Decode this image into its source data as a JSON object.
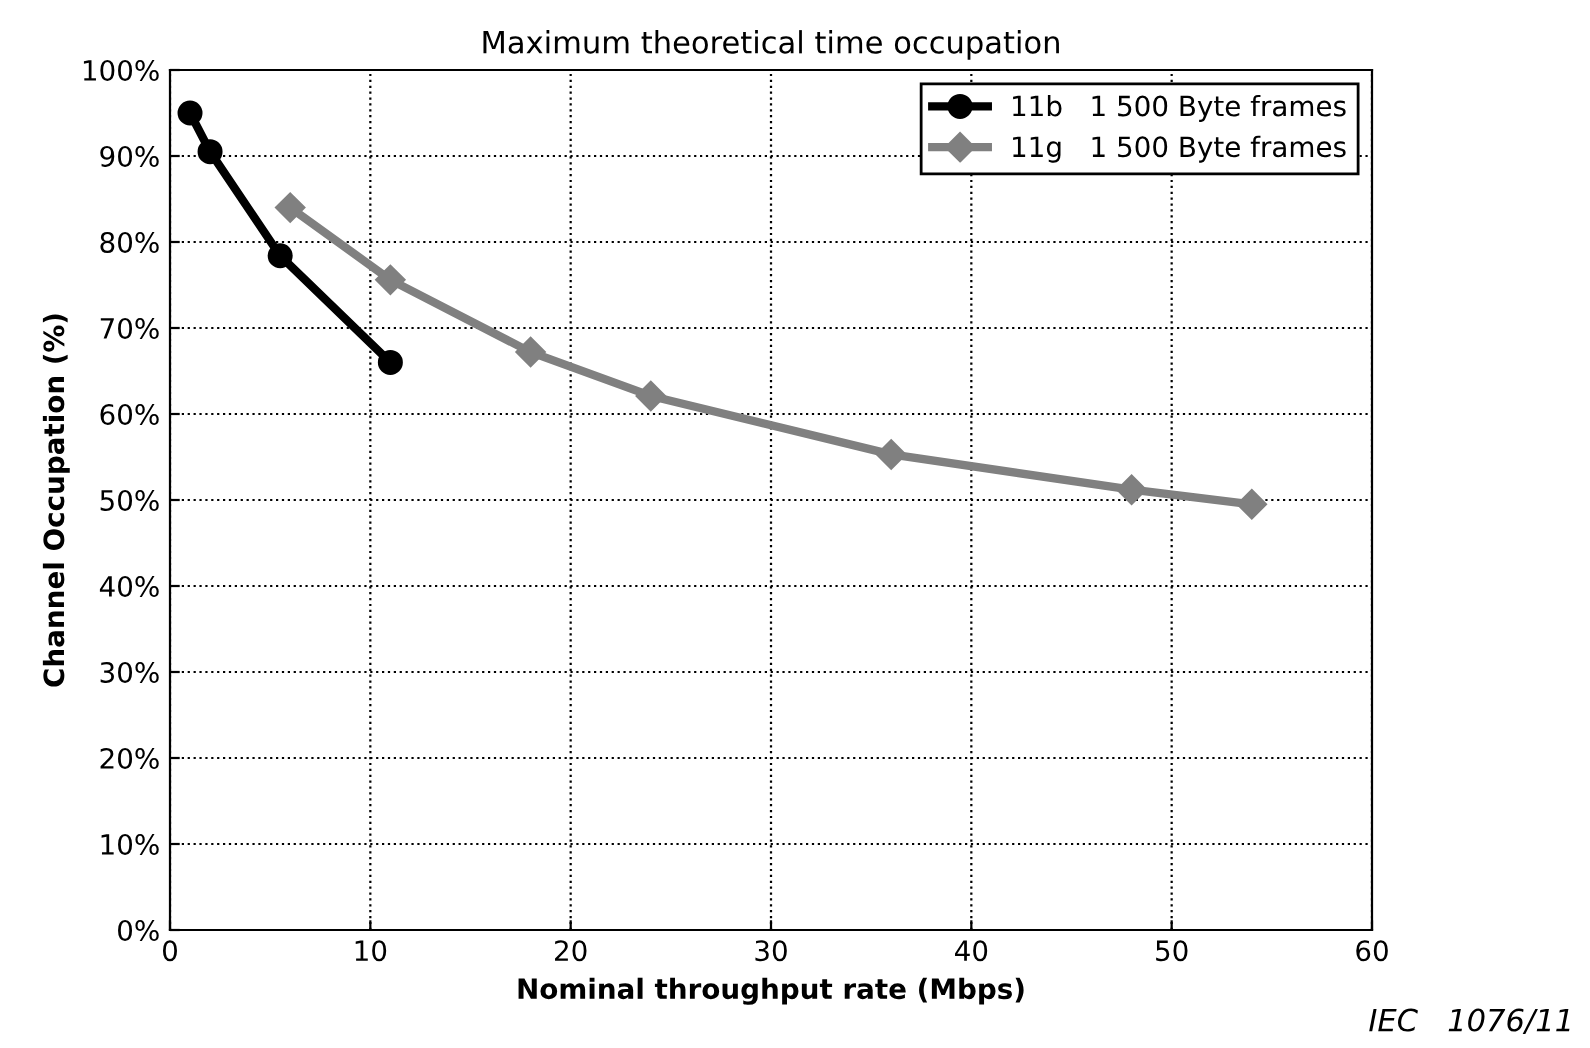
{
  "chart_data": {
    "type": "line",
    "title": "Maximum theoretical time occupation",
    "xlabel": "Nominal throughput rate (Mbps)",
    "ylabel": "Channel Occupation (%)",
    "series": [
      {
        "name": "11b   1 500 Byte frames",
        "color": "#000000",
        "marker": "circle",
        "x": [
          1,
          2,
          5.5,
          11
        ],
        "values": [
          95,
          90.5,
          78.4,
          66
        ]
      },
      {
        "name": "11g   1 500 Byte frames",
        "color": "#808080",
        "marker": "diamond",
        "x": [
          6,
          11,
          18,
          24,
          36,
          48,
          54
        ],
        "values": [
          84,
          75.6,
          67.2,
          62.1,
          55.3,
          51.2,
          49.5
        ]
      }
    ],
    "xlim": [
      0,
      60
    ],
    "xticks": [
      0,
      10,
      20,
      30,
      40,
      50,
      60
    ],
    "ylim": [
      0,
      100
    ],
    "yticks": [
      {
        "value": 0,
        "label": "0%"
      },
      {
        "value": 10,
        "label": "10%"
      },
      {
        "value": 20,
        "label": "20%"
      },
      {
        "value": 30,
        "label": "30%"
      },
      {
        "value": 40,
        "label": "40%"
      },
      {
        "value": 50,
        "label": "50%"
      },
      {
        "value": 60,
        "label": "60%"
      },
      {
        "value": 70,
        "label": "70%"
      },
      {
        "value": 80,
        "label": "80%"
      },
      {
        "value": 90,
        "label": "90%"
      },
      {
        "value": 100,
        "label": "100%"
      }
    ],
    "grid": true,
    "legend": "top right",
    "line_style": "solid",
    "annotations": [
      "IEC   1076/11"
    ]
  }
}
